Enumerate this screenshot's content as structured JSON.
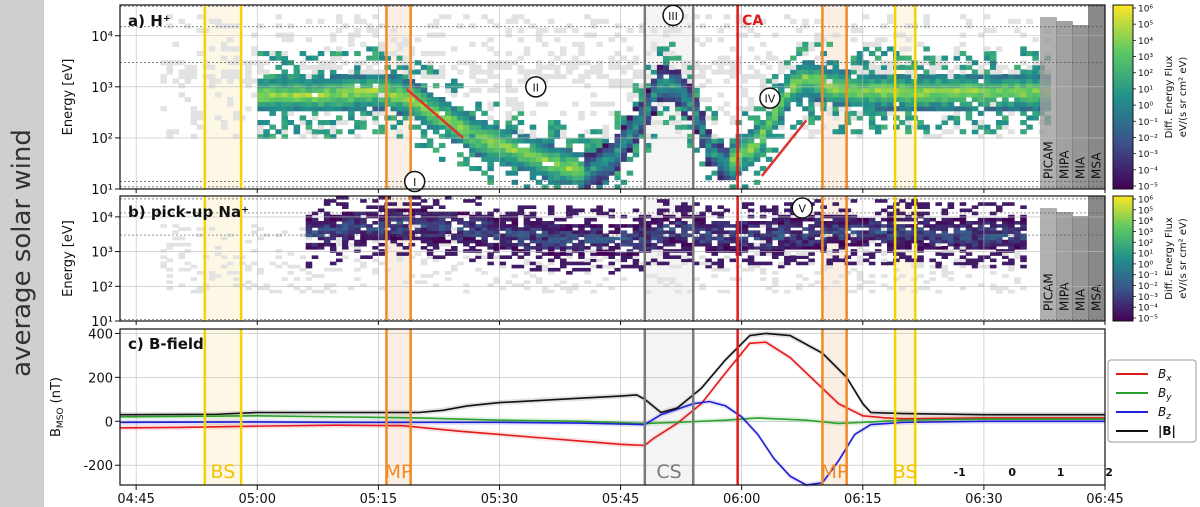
{
  "sidebar_label": "average solar wind",
  "chart_data": [
    {
      "type": "heatmap",
      "panel_label": "a) H⁺",
      "ylabel": "Energy [eV]",
      "yscale": "log",
      "ylim": [
        10,
        40000
      ],
      "yticks": [
        {
          "v": 10,
          "t": "10¹"
        },
        {
          "v": 100,
          "t": "10²"
        },
        {
          "v": 1000,
          "t": "10³"
        },
        {
          "v": 10000,
          "t": "10⁴"
        }
      ],
      "colorbar": {
        "label1": "Diff. Energy Flux",
        "label2": "eV/(s sr cm² eV)",
        "scale": "log",
        "range": [
          1e-05,
          1000000.0
        ],
        "ticks": [
          "10⁶",
          "10⁵",
          "10⁴",
          "10³",
          "10²",
          "10¹",
          "10⁰",
          "10⁻¹",
          "10⁻²",
          "10⁻³",
          "10⁻⁴",
          "10⁻⁵"
        ]
      },
      "annotations": [
        {
          "text": "I",
          "time_min": 19.5,
          "energy": 14
        },
        {
          "text": "II",
          "time_min": 34.5,
          "energy": 1000
        },
        {
          "text": "III",
          "time_min": 51.5,
          "energy": 25000
        },
        {
          "text": "IV",
          "time_min": 63.5,
          "energy": 600
        },
        {
          "text": "CA",
          "time_min": 60.3,
          "energy": 25000
        }
      ],
      "instrument_labels": [
        "PICAM",
        "MIPA",
        "MIA",
        "MSA"
      ],
      "ridge": [
        [
          0,
          700
        ],
        [
          8,
          700
        ],
        [
          15,
          850
        ],
        [
          19,
          600
        ],
        [
          23,
          250
        ],
        [
          27,
          110
        ],
        [
          32,
          60
        ],
        [
          37,
          30
        ],
        [
          41,
          22
        ],
        [
          44,
          40
        ],
        [
          46,
          110
        ],
        [
          48,
          300
        ],
        [
          50,
          1200
        ],
        [
          52,
          1000
        ],
        [
          54,
          400
        ],
        [
          56,
          60
        ],
        [
          58,
          30
        ],
        [
          62,
          80
        ],
        [
          64,
          300
        ],
        [
          66,
          1000
        ],
        [
          68,
          1500
        ],
        [
          72,
          900
        ],
        [
          80,
          800
        ],
        [
          88,
          800
        ],
        [
          95,
          800
        ],
        [
          100,
          800
        ]
      ]
    },
    {
      "type": "heatmap",
      "panel_label": "b) pick-up Na⁺",
      "ylabel": "Energy [eV]",
      "yscale": "log",
      "ylim": [
        10,
        40000
      ],
      "yticks": [
        {
          "v": 10,
          "t": "10¹"
        },
        {
          "v": 100,
          "t": "10²"
        },
        {
          "v": 1000,
          "t": "10³"
        },
        {
          "v": 10000,
          "t": "10⁴"
        }
      ],
      "colorbar": {
        "label1": "Diff. Energy Flux",
        "label2": "eV/(s sr cm² eV)",
        "scale": "log",
        "range": [
          1e-05,
          1000000.0
        ],
        "ticks": [
          "10⁶",
          "10⁵",
          "10⁴",
          "10³",
          "10²",
          "10¹",
          "10⁰",
          "10⁻¹",
          "10⁻²",
          "10⁻³",
          "10⁻⁴",
          "10⁻⁵"
        ]
      },
      "annotations": [
        {
          "text": "V",
          "time_min": 67.5,
          "energy": 18000
        }
      ],
      "instrument_labels": [
        "PICAM",
        "MIPA",
        "MIA",
        "MSA"
      ],
      "ridge": [
        [
          6,
          3000
        ],
        [
          12,
          5000
        ],
        [
          18,
          6000
        ],
        [
          25,
          5000
        ],
        [
          32,
          3000
        ],
        [
          38,
          2200
        ],
        [
          45,
          2200
        ],
        [
          48,
          2500
        ],
        [
          52,
          5000
        ],
        [
          55,
          3000
        ],
        [
          64,
          2800
        ],
        [
          68,
          3500
        ],
        [
          72,
          4000
        ],
        [
          80,
          3500
        ],
        [
          88,
          3000
        ],
        [
          95,
          3000
        ]
      ]
    },
    {
      "type": "line",
      "panel_label": "c) B-field",
      "ylabel": "B",
      "ylabel_sub": "MSO",
      "ylabel_unit": " (nT)",
      "ylim": [
        -290,
        420
      ],
      "yticks": [
        -200,
        0,
        200,
        400
      ],
      "x_range_min": [
        -17,
        105
      ],
      "xticks": [
        {
          "v": -15,
          "t": "04:45"
        },
        {
          "v": 0,
          "t": "05:00"
        },
        {
          "v": 15,
          "t": "05:15"
        },
        {
          "v": 30,
          "t": "05:30"
        },
        {
          "v": 45,
          "t": "05:45"
        },
        {
          "v": 60,
          "t": "06:00"
        },
        {
          "v": 75,
          "t": "06:15"
        },
        {
          "v": 90,
          "t": "06:30"
        },
        {
          "v": 105,
          "t": "06:45"
        }
      ],
      "legend": [
        {
          "sym": "B",
          "sub": "x",
          "color": "#e31a1c"
        },
        {
          "sym": "B",
          "sub": "y",
          "color": "#2ca02c"
        },
        {
          "sym": "B",
          "sub": "z",
          "color": "#1f1fd6"
        },
        {
          "sym": "|B|",
          "sub": "",
          "color": "#111111"
        }
      ],
      "series": [
        {
          "name": "Bx",
          "color": "#e31a1c",
          "points": [
            [
              -17,
              -30
            ],
            [
              -10,
              -28
            ],
            [
              0,
              -22
            ],
            [
              10,
              -18
            ],
            [
              18,
              -20
            ],
            [
              25,
              -45
            ],
            [
              30,
              -60
            ],
            [
              35,
              -75
            ],
            [
              40,
              -90
            ],
            [
              45,
              -105
            ],
            [
              48,
              -110
            ],
            [
              49,
              -80
            ],
            [
              52,
              -10
            ],
            [
              55,
              80
            ],
            [
              58,
              220
            ],
            [
              61,
              355
            ],
            [
              63,
              360
            ],
            [
              66,
              290
            ],
            [
              70,
              150
            ],
            [
              72,
              80
            ],
            [
              75,
              25
            ],
            [
              78,
              15
            ],
            [
              80,
              12
            ],
            [
              90,
              15
            ],
            [
              105,
              15
            ]
          ]
        },
        {
          "name": "By",
          "color": "#2ca02c",
          "points": [
            [
              -17,
              20
            ],
            [
              0,
              25
            ],
            [
              10,
              20
            ],
            [
              20,
              15
            ],
            [
              30,
              5
            ],
            [
              40,
              0
            ],
            [
              48,
              -10
            ],
            [
              52,
              -5
            ],
            [
              58,
              5
            ],
            [
              62,
              15
            ],
            [
              68,
              5
            ],
            [
              72,
              -10
            ],
            [
              75,
              -5
            ],
            [
              80,
              5
            ],
            [
              90,
              10
            ],
            [
              105,
              10
            ]
          ]
        },
        {
          "name": "Bz",
          "color": "#1f1fd6",
          "points": [
            [
              -17,
              -5
            ],
            [
              0,
              -3
            ],
            [
              10,
              -5
            ],
            [
              20,
              -5
            ],
            [
              30,
              -5
            ],
            [
              40,
              -8
            ],
            [
              48,
              -15
            ],
            [
              50,
              30
            ],
            [
              52,
              55
            ],
            [
              54,
              80
            ],
            [
              56,
              90
            ],
            [
              58,
              70
            ],
            [
              60,
              20
            ],
            [
              62,
              -60
            ],
            [
              64,
              -170
            ],
            [
              66,
              -250
            ],
            [
              68,
              -290
            ],
            [
              70,
              -280
            ],
            [
              72,
              -180
            ],
            [
              74,
              -60
            ],
            [
              76,
              -15
            ],
            [
              80,
              -5
            ],
            [
              90,
              0
            ],
            [
              105,
              0
            ]
          ]
        },
        {
          "name": "|B|",
          "color": "#111111",
          "points": [
            [
              -17,
              30
            ],
            [
              -5,
              32
            ],
            [
              0,
              40
            ],
            [
              10,
              40
            ],
            [
              20,
              40
            ],
            [
              23,
              50
            ],
            [
              26,
              70
            ],
            [
              30,
              85
            ],
            [
              35,
              95
            ],
            [
              40,
              105
            ],
            [
              45,
              115
            ],
            [
              47,
              120
            ],
            [
              48,
              100
            ],
            [
              50,
              40
            ],
            [
              52,
              60
            ],
            [
              55,
              150
            ],
            [
              58,
              280
            ],
            [
              61,
              390
            ],
            [
              63,
              400
            ],
            [
              66,
              390
            ],
            [
              70,
              310
            ],
            [
              73,
              200
            ],
            [
              75,
              80
            ],
            [
              76,
              40
            ],
            [
              80,
              35
            ],
            [
              90,
              30
            ],
            [
              105,
              30
            ]
          ]
        }
      ]
    }
  ],
  "boundaries": [
    {
      "label": "BS",
      "start": -6.5,
      "end": -2,
      "color": "#f3d300",
      "label_color": "#f3c300",
      "fill": "#fbf3d4"
    },
    {
      "label": "MP",
      "start": 16,
      "end": 19,
      "color": "#f08a24",
      "label_color": "#f08a24",
      "fill": "#f8e3cf"
    },
    {
      "label": "CS",
      "start": 48,
      "end": 54,
      "color": "#7a7a7a",
      "label_color": "#7a7a7a",
      "fill": "#ececec"
    },
    {
      "label": "MP",
      "start": 70,
      "end": 73,
      "color": "#f08a24",
      "label_color": "#f08a24",
      "fill": "#f8e3cf"
    },
    {
      "label": "BS",
      "start": 79,
      "end": 81.5,
      "color": "#f3d300",
      "label_color": "#f3c300",
      "fill": "#fbf3d4"
    }
  ],
  "ca_line": {
    "time_min": 59.5,
    "color": "#e31a1c"
  },
  "day_markers": [
    "-1",
    "0",
    "1",
    "2"
  ],
  "day_marker_times": [
    87,
    93.5,
    99.5,
    105.5
  ]
}
